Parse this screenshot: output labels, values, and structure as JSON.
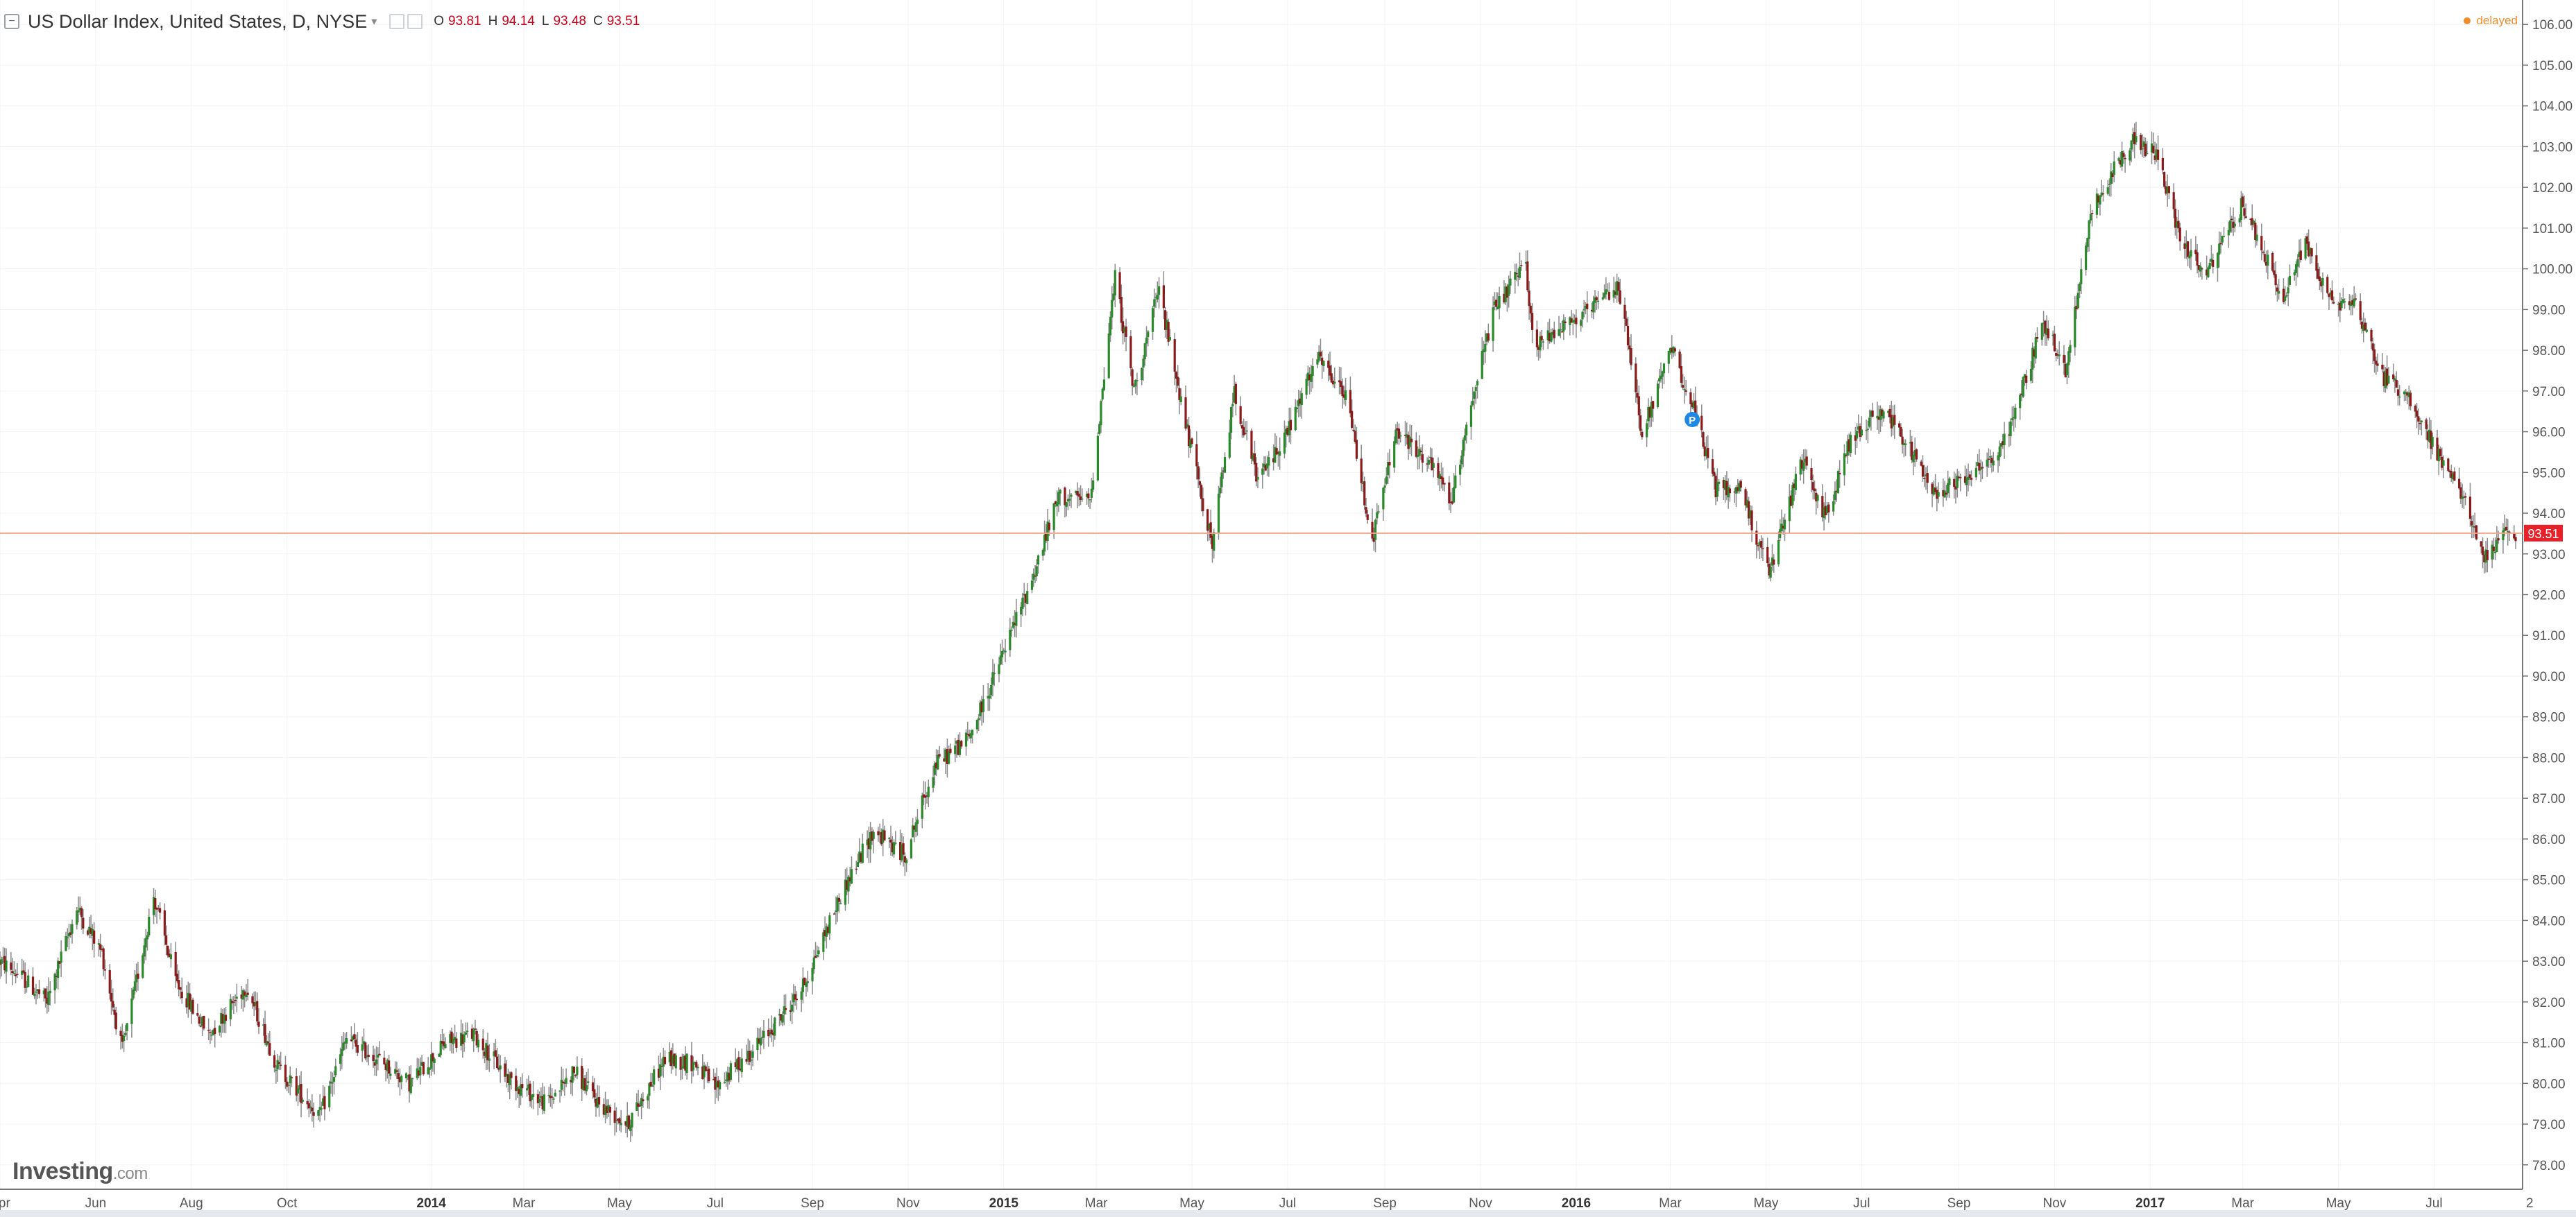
{
  "legend": {
    "title": "US Dollar Index, United States, D, NYSE",
    "ohlc": {
      "o_label": "O",
      "o": "93.81",
      "h_label": "H",
      "h": "94.14",
      "l_label": "L",
      "l": "93.48",
      "c_label": "C",
      "c": "93.51"
    }
  },
  "status": {
    "delayed": "delayed"
  },
  "logo": {
    "brand": "Investing",
    "domain": ".com"
  },
  "colors": {
    "up": "#2a8a2a",
    "down": "#8b1a1a",
    "wick": "#8a8a8a",
    "price_line": "#f4a58a",
    "price_badge": "#e8202a",
    "grid": "#f1f3f5",
    "axis_text": "#555555",
    "event_marker": "#1e88e5"
  },
  "chart_data": {
    "type": "candlestick",
    "title": "US Dollar Index, United States, D, NYSE",
    "ylim": [
      77.4,
      106.6
    ],
    "yticks": [
      78,
      79,
      80,
      81,
      82,
      83,
      84,
      85,
      86,
      87,
      88,
      89,
      90,
      91,
      92,
      93,
      94,
      95,
      96,
      97,
      98,
      99,
      100,
      101,
      102,
      103,
      104,
      105,
      106
    ],
    "x_start": "2013-04-01",
    "x_end": "2017-08-22",
    "xticks": [
      {
        "date": "2013-04-01",
        "label": "Apr",
        "bold": false
      },
      {
        "date": "2013-06-01",
        "label": "Jun",
        "bold": false
      },
      {
        "date": "2013-08-01",
        "label": "Aug",
        "bold": false
      },
      {
        "date": "2013-10-01",
        "label": "Oct",
        "bold": false
      },
      {
        "date": "2014-01-01",
        "label": "2014",
        "bold": true
      },
      {
        "date": "2014-03-01",
        "label": "Mar",
        "bold": false
      },
      {
        "date": "2014-05-01",
        "label": "May",
        "bold": false
      },
      {
        "date": "2014-07-01",
        "label": "Jul",
        "bold": false
      },
      {
        "date": "2014-09-01",
        "label": "Sep",
        "bold": false
      },
      {
        "date": "2014-11-01",
        "label": "Nov",
        "bold": false
      },
      {
        "date": "2015-01-01",
        "label": "2015",
        "bold": true
      },
      {
        "date": "2015-03-01",
        "label": "Mar",
        "bold": false
      },
      {
        "date": "2015-05-01",
        "label": "May",
        "bold": false
      },
      {
        "date": "2015-07-01",
        "label": "Jul",
        "bold": false
      },
      {
        "date": "2015-09-01",
        "label": "Sep",
        "bold": false
      },
      {
        "date": "2015-11-01",
        "label": "Nov",
        "bold": false
      },
      {
        "date": "2016-01-01",
        "label": "2016",
        "bold": true
      },
      {
        "date": "2016-03-01",
        "label": "Mar",
        "bold": false
      },
      {
        "date": "2016-05-01",
        "label": "May",
        "bold": false
      },
      {
        "date": "2016-07-01",
        "label": "Jul",
        "bold": false
      },
      {
        "date": "2016-09-01",
        "label": "Sep",
        "bold": false
      },
      {
        "date": "2016-11-01",
        "label": "Nov",
        "bold": false
      },
      {
        "date": "2017-01-01",
        "label": "2017",
        "bold": true
      },
      {
        "date": "2017-03-01",
        "label": "Mar",
        "bold": false
      },
      {
        "date": "2017-05-01",
        "label": "May",
        "bold": false
      },
      {
        "date": "2017-07-01",
        "label": "Jul",
        "bold": false
      },
      {
        "date": "2017-08-31",
        "label": "2",
        "bold": false
      }
    ],
    "anchors": [
      {
        "date": "2013-04-01",
        "value": 83.0
      },
      {
        "date": "2013-04-15",
        "value": 82.6
      },
      {
        "date": "2013-05-01",
        "value": 82.0
      },
      {
        "date": "2013-05-20",
        "value": 84.3
      },
      {
        "date": "2013-06-05",
        "value": 83.2
      },
      {
        "date": "2013-06-18",
        "value": 80.8
      },
      {
        "date": "2013-07-08",
        "value": 84.6
      },
      {
        "date": "2013-07-22",
        "value": 82.5
      },
      {
        "date": "2013-08-12",
        "value": 81.2
      },
      {
        "date": "2013-09-05",
        "value": 82.4
      },
      {
        "date": "2013-09-25",
        "value": 80.4
      },
      {
        "date": "2013-10-22",
        "value": 79.2
      },
      {
        "date": "2013-11-08",
        "value": 81.1
      },
      {
        "date": "2013-11-28",
        "value": 80.6
      },
      {
        "date": "2013-12-18",
        "value": 80.0
      },
      {
        "date": "2014-01-10",
        "value": 81.0
      },
      {
        "date": "2014-01-28",
        "value": 81.2
      },
      {
        "date": "2014-02-20",
        "value": 80.1
      },
      {
        "date": "2014-03-15",
        "value": 79.5
      },
      {
        "date": "2014-04-02",
        "value": 80.3
      },
      {
        "date": "2014-04-18",
        "value": 79.5
      },
      {
        "date": "2014-05-06",
        "value": 79.0
      },
      {
        "date": "2014-05-30",
        "value": 80.6
      },
      {
        "date": "2014-06-18",
        "value": 80.5
      },
      {
        "date": "2014-07-01",
        "value": 79.9
      },
      {
        "date": "2014-08-01",
        "value": 81.1
      },
      {
        "date": "2014-08-25",
        "value": 82.3
      },
      {
        "date": "2014-09-20",
        "value": 84.7
      },
      {
        "date": "2014-10-10",
        "value": 86.2
      },
      {
        "date": "2014-10-30",
        "value": 85.6
      },
      {
        "date": "2014-11-18",
        "value": 87.8
      },
      {
        "date": "2014-12-10",
        "value": 88.5
      },
      {
        "date": "2014-12-24",
        "value": 89.8
      },
      {
        "date": "2015-01-20",
        "value": 92.5
      },
      {
        "date": "2015-02-05",
        "value": 94.4
      },
      {
        "date": "2015-02-25",
        "value": 94.3
      },
      {
        "date": "2015-03-13",
        "value": 99.8
      },
      {
        "date": "2015-03-25",
        "value": 97.0
      },
      {
        "date": "2015-04-10",
        "value": 99.5
      },
      {
        "date": "2015-04-28",
        "value": 96.0
      },
      {
        "date": "2015-05-14",
        "value": 93.2
      },
      {
        "date": "2015-05-28",
        "value": 97.0
      },
      {
        "date": "2015-06-12",
        "value": 94.8
      },
      {
        "date": "2015-07-01",
        "value": 96.0
      },
      {
        "date": "2015-07-20",
        "value": 97.8
      },
      {
        "date": "2015-08-08",
        "value": 96.8
      },
      {
        "date": "2015-08-24",
        "value": 93.3
      },
      {
        "date": "2015-09-08",
        "value": 96.0
      },
      {
        "date": "2015-09-28",
        "value": 95.3
      },
      {
        "date": "2015-10-14",
        "value": 94.3
      },
      {
        "date": "2015-10-25",
        "value": 96.6
      },
      {
        "date": "2015-11-10",
        "value": 99.0
      },
      {
        "date": "2015-11-30",
        "value": 100.1
      },
      {
        "date": "2015-12-05",
        "value": 98.0
      },
      {
        "date": "2015-12-20",
        "value": 98.6
      },
      {
        "date": "2016-01-05",
        "value": 98.8
      },
      {
        "date": "2016-01-28",
        "value": 99.6
      },
      {
        "date": "2016-02-12",
        "value": 96.0
      },
      {
        "date": "2016-03-02",
        "value": 98.0
      },
      {
        "date": "2016-03-14",
        "value": 96.8
      },
      {
        "date": "2016-03-30",
        "value": 94.6
      },
      {
        "date": "2016-04-15",
        "value": 94.6
      },
      {
        "date": "2016-05-03",
        "value": 92.5
      },
      {
        "date": "2016-05-24",
        "value": 95.3
      },
      {
        "date": "2016-06-08",
        "value": 93.9
      },
      {
        "date": "2016-06-24",
        "value": 95.8
      },
      {
        "date": "2016-07-15",
        "value": 96.6
      },
      {
        "date": "2016-08-17",
        "value": 94.5
      },
      {
        "date": "2016-09-08",
        "value": 95.0
      },
      {
        "date": "2016-09-28",
        "value": 95.5
      },
      {
        "date": "2016-10-25",
        "value": 98.7
      },
      {
        "date": "2016-11-08",
        "value": 97.5
      },
      {
        "date": "2016-11-25",
        "value": 101.5
      },
      {
        "date": "2016-12-20",
        "value": 103.2
      },
      {
        "date": "2017-01-05",
        "value": 102.8
      },
      {
        "date": "2017-01-20",
        "value": 100.8
      },
      {
        "date": "2017-02-05",
        "value": 99.8
      },
      {
        "date": "2017-03-01",
        "value": 101.6
      },
      {
        "date": "2017-03-27",
        "value": 99.2
      },
      {
        "date": "2017-04-10",
        "value": 100.7
      },
      {
        "date": "2017-04-26",
        "value": 99.2
      },
      {
        "date": "2017-05-12",
        "value": 99.2
      },
      {
        "date": "2017-05-28",
        "value": 97.4
      },
      {
        "date": "2017-06-14",
        "value": 96.9
      },
      {
        "date": "2017-07-01",
        "value": 95.6
      },
      {
        "date": "2017-07-18",
        "value": 94.5
      },
      {
        "date": "2017-08-02",
        "value": 92.9
      },
      {
        "date": "2017-08-12",
        "value": 93.4
      },
      {
        "date": "2017-08-22",
        "value": 93.51
      }
    ],
    "current_price": 93.51,
    "current_price_label": "93.51",
    "event_marker": {
      "date": "2016-03-15",
      "value": 96.3,
      "label": "P"
    }
  }
}
